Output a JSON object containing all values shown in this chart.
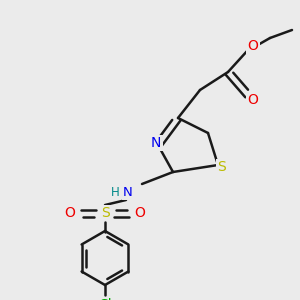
{
  "bg_color": "#ebebeb",
  "bond_color": "#1a1a1a",
  "bond_width": 1.8,
  "atom_colors": {
    "N": "#0000ee",
    "S_thiazole": "#bbbb00",
    "S_sulfonyl": "#bbbb00",
    "O": "#ee0000",
    "Cl": "#00aa00",
    "H": "#008888",
    "C": "#1a1a1a"
  },
  "fs": 8.5
}
